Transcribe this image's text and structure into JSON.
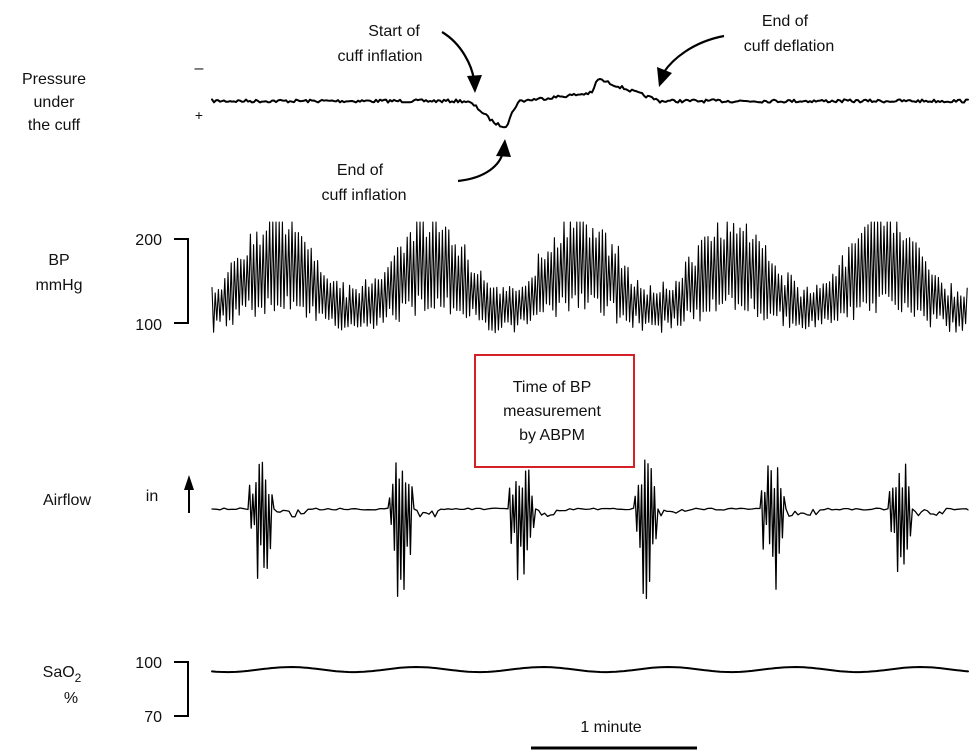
{
  "chart_data": {
    "type": "line",
    "channels": {
      "pressure": {
        "label": [
          "Pressure",
          "under",
          "the cuff"
        ],
        "sign_minus": "–",
        "sign_plus": "+"
      },
      "bp": {
        "label": [
          "BP",
          "mmHg"
        ],
        "ticks": [
          "200",
          "100"
        ],
        "ylim": [
          100,
          200
        ],
        "cycles": 5
      },
      "airflow": {
        "label": [
          "Airflow"
        ],
        "in_label": "in",
        "bursts": 6
      },
      "sao2": {
        "label_prefix": "SaO",
        "label_sub": "2",
        "label_unit": "%",
        "ticks": [
          "100",
          "70"
        ],
        "ylim": [
          70,
          100
        ],
        "baseline": 97
      }
    },
    "annotations": {
      "start_inflation": [
        "Start of",
        "cuff inflation"
      ],
      "end_inflation": [
        "End of",
        "cuff inflation"
      ],
      "end_deflation": [
        "End of",
        "cuff deflation"
      ],
      "abpm_box": [
        "Time of BP",
        "measurement",
        "by ABPM"
      ]
    },
    "scale_bar": "1 minute",
    "colors": {
      "trace": "#000000",
      "box": "#d62027"
    }
  }
}
